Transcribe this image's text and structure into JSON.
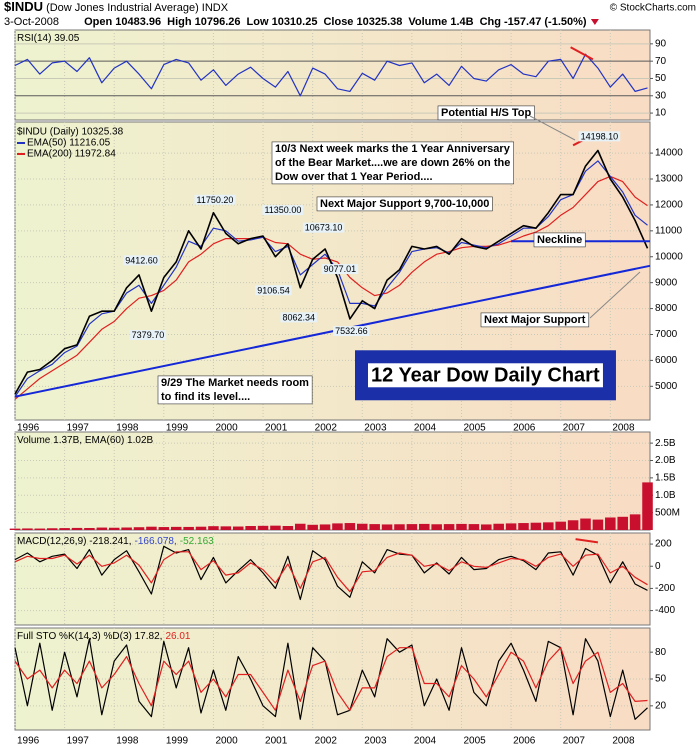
{
  "header": {
    "symbol": "$INDU",
    "name": "(Dow Jones Industrial Average) INDX",
    "source": "© StockCharts.com",
    "date": "3-Oct-2008",
    "quote": [
      "Open 10483.96",
      "High 10796.26",
      "Low 10310.25",
      "Close 10325.38",
      "Volume 1.4B",
      "Chg -157.47 (-1.50%)"
    ]
  },
  "chart_data": {
    "type": "financial",
    "x": [
      1996.0,
      1996.25,
      1996.5,
      1996.75,
      1997.0,
      1997.25,
      1997.5,
      1997.75,
      1998.0,
      1998.25,
      1998.5,
      1998.75,
      1999.0,
      1999.25,
      1999.5,
      1999.75,
      2000.0,
      2000.25,
      2000.5,
      2000.75,
      2001.0,
      2001.25,
      2001.5,
      2001.75,
      2002.0,
      2002.25,
      2002.5,
      2002.75,
      2003.0,
      2003.25,
      2003.5,
      2003.75,
      2004.0,
      2004.25,
      2004.5,
      2004.75,
      2005.0,
      2005.25,
      2005.5,
      2005.75,
      2006.0,
      2006.25,
      2006.5,
      2006.75,
      2007.0,
      2007.25,
      2007.5,
      2007.75,
      2008.0,
      2008.25,
      2008.5,
      2008.75
    ],
    "xlim": [
      1996.0,
      2008.8
    ],
    "xticks": [
      1996,
      1997,
      1998,
      1999,
      2000,
      2001,
      2002,
      2003,
      2004,
      2005,
      2006,
      2007,
      2008
    ],
    "grid": true,
    "panels": [
      {
        "type": "line",
        "title_parts": [
          {
            "text": "RSI(14) 39.05",
            "color": "#000000"
          }
        ],
        "ylim": [
          2,
          106
        ],
        "yticks": [
          10,
          30,
          50,
          70,
          90
        ],
        "series": [
          {
            "name": "RSI(14)",
            "color": "#2233c4",
            "values": [
              65,
              72,
              55,
              68,
              70,
              58,
              74,
              45,
              62,
              70,
              55,
              38,
              66,
              72,
              68,
              48,
              60,
              42,
              55,
              63,
              50,
              40,
              58,
              30,
              62,
              55,
              38,
              35,
              56,
              48,
              70,
              65,
              68,
              45,
              55,
              42,
              64,
              50,
              47,
              60,
              66,
              55,
              52,
              70,
              72,
              50,
              78,
              62,
              40,
              55,
              35,
              39.05
            ]
          }
        ],
        "lines": [
          {
            "x": [
              2007.2,
              2007.65
            ],
            "values": [
              86,
              72
            ],
            "color": "#e02020"
          }
        ]
      },
      {
        "type": "line",
        "title_parts": [],
        "ylim": [
          3700,
          15200
        ],
        "yticks": [
          5000,
          6000,
          7000,
          8000,
          9000,
          10000,
          11000,
          12000,
          13000,
          14000
        ],
        "series": [
          {
            "name": "EMA(200) 11972.84",
            "color": "#e02020",
            "values": [
              4500,
              4900,
              5300,
              5600,
              5900,
              6200,
              6700,
              7200,
              7500,
              8000,
              8400,
              8500,
              8700,
              9100,
              9800,
              10100,
              10500,
              10700,
              10700,
              10700,
              10750,
              10550,
              10500,
              10100,
              9900,
              9950,
              9800,
              9200,
              8800,
              8500,
              8600,
              8900,
              9400,
              9800,
              10100,
              10200,
              10350,
              10400,
              10400,
              10450,
              10600,
              10800,
              10950,
              11200,
              11600,
              11900,
              12400,
              12900,
              13100,
              12900,
              12300,
              11972.84
            ]
          },
          {
            "name": "EMA(50) 11216.05",
            "color": "#2233c4",
            "values": [
              4600,
              5300,
              5600,
              5850,
              6300,
              6550,
              7400,
              7800,
              7900,
              8600,
              8900,
              8200,
              8900,
              9600,
              10600,
              10400,
              11100,
              11000,
              10600,
              10650,
              10750,
              10200,
              10400,
              9300,
              9700,
              10100,
              9500,
              8200,
              8200,
              8100,
              8800,
              9400,
              10200,
              10300,
              10350,
              10150,
              10550,
              10450,
              10350,
              10500,
              10800,
              11100,
              11100,
              11550,
              12200,
              12400,
              13300,
              13700,
              13100,
              12500,
              11600,
              11216.05
            ]
          },
          {
            "name": "$INDU (Daily) 10325.38",
            "color": "#000000",
            "values": [
              4700,
              5550,
              5650,
              6000,
              6450,
              6600,
              7700,
              7900,
              7900,
              8800,
              9300,
              7900,
              9200,
              9800,
              11000,
              10300,
              11700,
              10900,
              10500,
              10700,
              10800,
              10000,
              10500,
              8800,
              9900,
              10300,
              9200,
              7600,
              8300,
              8000,
              9100,
              9500,
              10400,
              10300,
              10400,
              10100,
              10700,
              10400,
              10300,
              10600,
              10900,
              11200,
              11100,
              11700,
              12400,
              12400,
              13500,
              14100,
              13000,
              12300,
              11400,
              10325.38
            ]
          }
        ],
        "point_labels": [
          {
            "x": 1998.55,
            "value": 9412.6,
            "label": "9412.60"
          },
          {
            "x": 1998.68,
            "value": 7379.7,
            "label": "7379.70"
          },
          {
            "x": 2000.03,
            "value": 11750.2,
            "label": "11750.20"
          },
          {
            "x": 2001.21,
            "value": 9106.54,
            "label": "9106.54"
          },
          {
            "x": 2001.4,
            "value": 11350,
            "label": "11350.00"
          },
          {
            "x": 2001.72,
            "value": 8062.34,
            "label": "8062.34"
          },
          {
            "x": 2002.22,
            "value": 10673.1,
            "label": "10673.10"
          },
          {
            "x": 2002.55,
            "value": 9077.01,
            "label": "9077.01"
          },
          {
            "x": 2002.78,
            "value": 7532.66,
            "label": "7532.66"
          },
          {
            "x": 2007.78,
            "value": 14198.1,
            "label": "14198.10"
          }
        ],
        "lines": [
          {
            "x": [
              1996.0,
              2008.8
            ],
            "values": [
              4600,
              9650
            ],
            "color": "#1428d8"
          },
          {
            "x": [
              2006.0,
              2008.8
            ],
            "values": [
              10600,
              10600
            ],
            "color": "#1428d8"
          },
          {
            "x": [
              2007.25,
              2007.6
            ],
            "values": [
              14300,
              14650
            ],
            "color": "#e02020"
          }
        ],
        "annotations": [
          [
            "Potential H/S Top"
          ],
          [
            "10/3  Next week marks the 1 Year Anniversary",
            "of the Bear Market....we are down 26% on the",
            "Dow over that 1 Year Period...."
          ],
          [
            "Next Major Support 9,700-10,000"
          ],
          [
            "Neckline"
          ],
          [
            "Next Major Support"
          ],
          [
            "9/29  The Market needs room",
            "to find its level...."
          ],
          [
            "12 Year Dow Daily Chart"
          ]
        ]
      },
      {
        "type": "bar",
        "title_parts": [
          {
            "text": "Volume 1.37B, EMA(60) 1.02B",
            "color": "#000000"
          }
        ],
        "ylim": [
          0,
          2820000000
        ],
        "yticks": [
          {
            "value": 500000000,
            "label": "500M"
          },
          {
            "value": 1000000000,
            "label": "1.0B"
          },
          {
            "value": 1500000000,
            "label": "1.5B"
          },
          {
            "value": 2000000000,
            "label": "2.0B"
          },
          {
            "value": 2500000000,
            "label": "2.5B"
          }
        ],
        "series": [
          {
            "name": "Volume",
            "color": "#c8102e",
            "values": [
              40000000,
              45000000,
              42000000,
              50000000,
              55000000,
              60000000,
              58000000,
              70000000,
              65000000,
              72000000,
              80000000,
              95000000,
              85000000,
              90000000,
              88000000,
              95000000,
              110000000,
              105000000,
              100000000,
              115000000,
              120000000,
              125000000,
              115000000,
              180000000,
              150000000,
              160000000,
              190000000,
              200000000,
              180000000,
              170000000,
              160000000,
              165000000,
              170000000,
              175000000,
              165000000,
              170000000,
              175000000,
              170000000,
              160000000,
              180000000,
              190000000,
              200000000,
              210000000,
              220000000,
              240000000,
              280000000,
              330000000,
              300000000,
              360000000,
              380000000,
              450000000,
              1370000000
            ]
          }
        ]
      },
      {
        "type": "line",
        "title_parts": [
          {
            "text": "MACD(12,26,9) -218.241,",
            "color": "#000000"
          },
          {
            "text": "-166.078,",
            "color": "#3344cc"
          },
          {
            "text": "-52.163",
            "color": "#33aa33"
          }
        ],
        "ylim": [
          -530,
          300
        ],
        "yticks": [
          -400,
          -200,
          0,
          200
        ],
        "series": [
          {
            "name": "MACD",
            "color": "#000000",
            "values": [
              60,
              120,
              40,
              90,
              110,
              -20,
              150,
              -80,
              60,
              140,
              -50,
              -250,
              180,
              120,
              150,
              -120,
              80,
              -150,
              -40,
              60,
              -60,
              -200,
              90,
              -300,
              140,
              60,
              -180,
              -280,
              40,
              -60,
              150,
              110,
              100,
              -60,
              30,
              -70,
              80,
              -30,
              -20,
              60,
              90,
              50,
              -30,
              120,
              130,
              -80,
              160,
              100,
              -150,
              40,
              -160,
              -218.241
            ]
          },
          {
            "name": "Signal",
            "color": "#e02020",
            "values": [
              40,
              90,
              70,
              70,
              100,
              20,
              100,
              0,
              30,
              100,
              10,
              -150,
              60,
              130,
              130,
              -30,
              50,
              -80,
              -60,
              30,
              -30,
              -150,
              20,
              -200,
              40,
              80,
              -100,
              -230,
              -50,
              -40,
              80,
              120,
              100,
              0,
              20,
              -40,
              40,
              0,
              -10,
              30,
              70,
              60,
              0,
              80,
              110,
              0,
              100,
              110,
              -60,
              0,
              -100,
              -166.078
            ]
          }
        ],
        "lines": [
          {
            "x": [
              2007.3,
              2007.75
            ],
            "values": [
              245,
              215
            ],
            "color": "#e02020"
          }
        ]
      },
      {
        "type": "line",
        "title_parts": [
          {
            "text": "Full STO %K(14,3) %D(3) 17.82,",
            "color": "#000000"
          },
          {
            "text": "26.01",
            "color": "#e02020"
          }
        ],
        "ylim": [
          -7,
          107
        ],
        "yticks": [
          20,
          50,
          80
        ],
        "series": [
          {
            "name": "%K",
            "color": "#000000",
            "values": [
              85,
              20,
              90,
              15,
              80,
              30,
              95,
              10,
              70,
              88,
              25,
              8,
              92,
              40,
              85,
              12,
              60,
              15,
              75,
              50,
              20,
              8,
              90,
              5,
              85,
              70,
              10,
              15,
              60,
              30,
              95,
              80,
              88,
              20,
              50,
              15,
              85,
              35,
              20,
              70,
              90,
              60,
              25,
              92,
              85,
              10,
              95,
              70,
              8,
              60,
              5,
              17.82
            ]
          },
          {
            "name": "%D",
            "color": "#e02020",
            "values": [
              70,
              50,
              60,
              40,
              60,
              45,
              70,
              40,
              55,
              75,
              45,
              20,
              70,
              55,
              70,
              35,
              50,
              30,
              55,
              55,
              35,
              15,
              60,
              25,
              65,
              70,
              35,
              15,
              40,
              40,
              75,
              85,
              85,
              45,
              45,
              30,
              65,
              50,
              30,
              55,
              80,
              70,
              40,
              70,
              85,
              45,
              70,
              80,
              35,
              45,
              25,
              26.01
            ]
          }
        ]
      }
    ]
  }
}
